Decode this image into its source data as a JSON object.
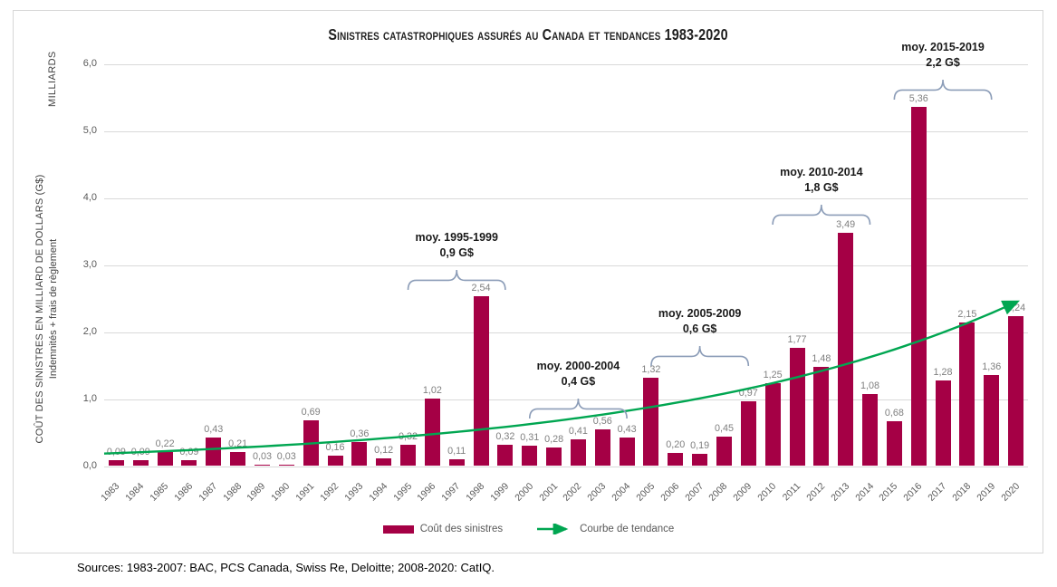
{
  "title": "Sinistres catastrophiques assurés au Canada et tendances 1983-2020",
  "y_axis": {
    "unit_label": "MILLIARDS",
    "axis_label_line1": "COÛT DES SINISTRES EN MILLIARD DE DOLLARS (G$)",
    "axis_label_line2": "Indemnités + frais de règlement",
    "tick_labels": [
      "0,0",
      "1,0",
      "2,0",
      "3,0",
      "4,0",
      "5,0",
      "6,0"
    ]
  },
  "legend": {
    "bars_label": "Coût des sinistres",
    "trend_label": "Courbe de tendance"
  },
  "sources": "Sources: 1983-2007: BAC, PCS Canada, Swiss Re, Deloitte; 2008-2020: CatIQ.",
  "colors": {
    "bar": "#A50045",
    "trend": "#00A651",
    "brace": "#8C9DB8",
    "value_label": "#7F7F7F",
    "axis_text": "#595959",
    "grid": "#D9D9D9"
  },
  "chart_data": {
    "type": "bar",
    "title": "Sinistres catastrophiques assurés au Canada et tendances 1983-2020",
    "ylabel": "COÛT DES SINISTRES EN MILLIARD DE DOLLARS (G$) — Indemnités + frais de règlement",
    "ylim": [
      0,
      6
    ],
    "grid": true,
    "legend_position": "bottom",
    "categories": [
      1983,
      1984,
      1985,
      1986,
      1987,
      1988,
      1989,
      1990,
      1991,
      1992,
      1993,
      1994,
      1995,
      1996,
      1997,
      1998,
      1999,
      2000,
      2001,
      2002,
      2003,
      2004,
      2005,
      2006,
      2007,
      2008,
      2009,
      2010,
      2011,
      2012,
      2013,
      2014,
      2015,
      2016,
      2017,
      2018,
      2019,
      2020
    ],
    "values": [
      0.09,
      0.09,
      0.22,
      0.09,
      0.43,
      0.21,
      0.03,
      0.03,
      0.69,
      0.16,
      0.36,
      0.12,
      0.32,
      1.02,
      0.11,
      2.54,
      0.32,
      0.31,
      0.28,
      0.41,
      0.56,
      0.43,
      1.32,
      0.2,
      0.19,
      0.45,
      0.97,
      1.25,
      1.77,
      1.48,
      3.49,
      1.08,
      0.68,
      5.36,
      1.28,
      2.15,
      1.36,
      2.24
    ],
    "series_name": "Coût des sinistres",
    "trend_line": {
      "name": "Courbe de tendance",
      "shape": "exponential",
      "start": {
        "year": 1983,
        "value": 0.2
      },
      "end": {
        "year": 2020,
        "value": 2.45
      }
    },
    "annotations": [
      {
        "label": "moy. 1995-1999",
        "value_label": "0,9 G$",
        "from": 1995,
        "to": 1999
      },
      {
        "label": "moy. 2000-2004",
        "value_label": "0,4 G$",
        "from": 2000,
        "to": 2004
      },
      {
        "label": "moy. 2005-2009",
        "value_label": "0,6 G$",
        "from": 2005,
        "to": 2009
      },
      {
        "label": "moy. 2010-2014",
        "value_label": "1,8 G$",
        "from": 2010,
        "to": 2014
      },
      {
        "label": "moy. 2015-2019",
        "value_label": "2,2 G$",
        "from": 2015,
        "to": 2019
      }
    ]
  }
}
